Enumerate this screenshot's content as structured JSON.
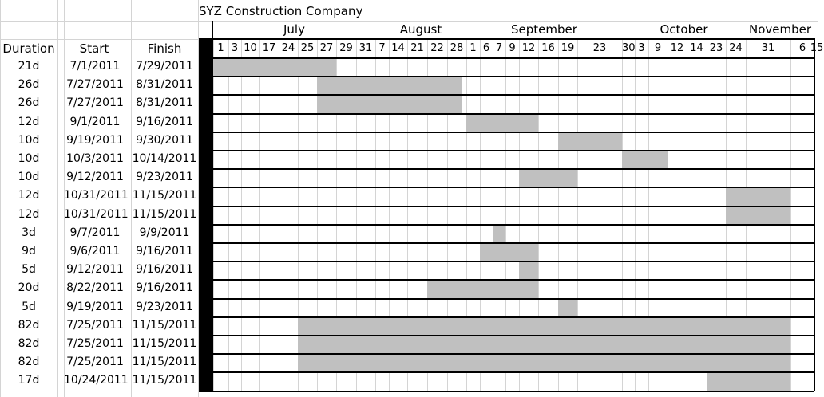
{
  "chart_data": {
    "type": "gantt",
    "title": "SYZ Construction Company",
    "columns": [
      "Duration",
      "Start",
      "Finish"
    ],
    "months": [
      "July",
      "August",
      "September",
      "October",
      "November"
    ],
    "day_ticks": [
      "1",
      "3",
      "10",
      "17",
      "24",
      "25",
      "27",
      "29",
      "31",
      "7",
      "14",
      "21",
      "22",
      "28",
      "1",
      "6",
      "7",
      "9",
      "12",
      "16",
      "19",
      "23",
      "30",
      "3",
      "9",
      "12",
      "14",
      "23",
      "24",
      "31",
      "6",
      "15"
    ],
    "tasks": [
      {
        "duration": "21d",
        "start": "7/1/2011",
        "finish": "7/29/2011"
      },
      {
        "duration": "26d",
        "start": "7/27/2011",
        "finish": "8/31/2011"
      },
      {
        "duration": "26d",
        "start": "7/27/2011",
        "finish": "8/31/2011"
      },
      {
        "duration": "12d",
        "start": "9/1/2011",
        "finish": "9/16/2011"
      },
      {
        "duration": "10d",
        "start": "9/19/2011",
        "finish": "9/30/2011"
      },
      {
        "duration": "10d",
        "start": "10/3/2011",
        "finish": "10/14/2011"
      },
      {
        "duration": "10d",
        "start": "9/12/2011",
        "finish": "9/23/2011"
      },
      {
        "duration": "12d",
        "start": "10/31/2011",
        "finish": "11/15/2011"
      },
      {
        "duration": "12d",
        "start": "10/31/2011",
        "finish": "11/15/2011"
      },
      {
        "duration": "3d",
        "start": "9/7/2011",
        "finish": "9/9/2011"
      },
      {
        "duration": "9d",
        "start": "9/6/2011",
        "finish": "9/16/2011"
      },
      {
        "duration": "5d",
        "start": "9/12/2011",
        "finish": "9/16/2011"
      },
      {
        "duration": "20d",
        "start": "8/22/2011",
        "finish": "9/16/2011"
      },
      {
        "duration": "5d",
        "start": "9/19/2011",
        "finish": "9/23/2011"
      },
      {
        "duration": "82d",
        "start": "7/25/2011",
        "finish": "11/15/2011"
      },
      {
        "duration": "82d",
        "start": "7/25/2011",
        "finish": "11/15/2011"
      },
      {
        "duration": "82d",
        "start": "7/25/2011",
        "finish": "11/15/2011"
      },
      {
        "duration": "17d",
        "start": "10/24/2011",
        "finish": "11/15/2011"
      }
    ],
    "bar_color": "#c0c0c0",
    "grid": true
  }
}
